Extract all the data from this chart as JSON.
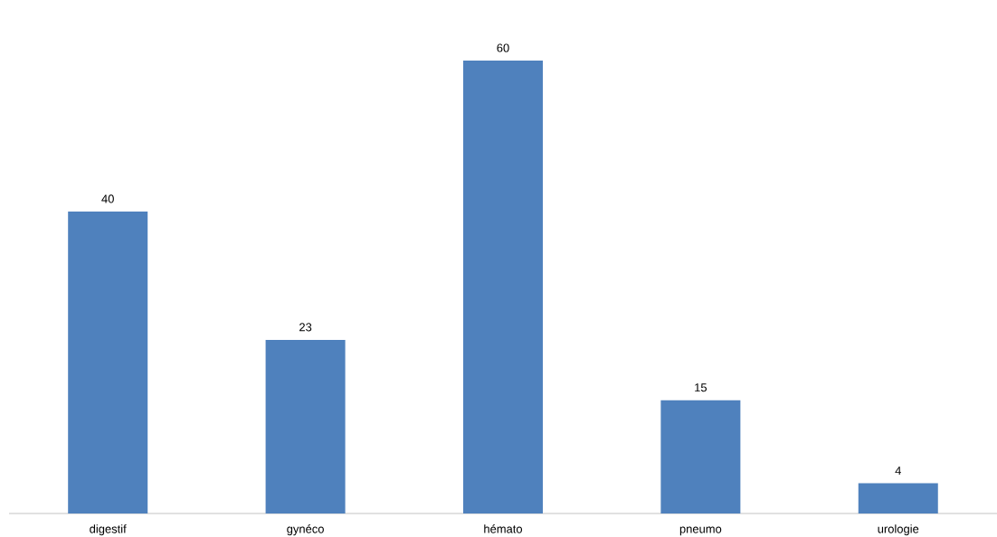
{
  "chart_data": {
    "type": "bar",
    "categories": [
      "digestif",
      "gynéco",
      "hémato",
      "pneumo",
      "urologie"
    ],
    "values": [
      40,
      23,
      60,
      15,
      4
    ],
    "color": "#4f81bd",
    "data_labels": true
  }
}
